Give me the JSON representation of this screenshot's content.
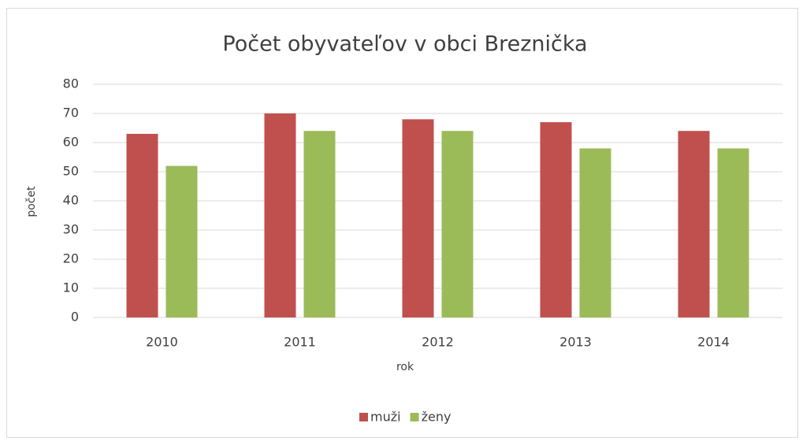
{
  "chart_data": {
    "type": "bar",
    "title": "Počet obyvateľov v obci Breznička",
    "x_label": "rok",
    "y_label": "počet",
    "categories": [
      "2010",
      "2011",
      "2012",
      "2013",
      "2014"
    ],
    "series": [
      {
        "name": "muži",
        "color": "#c0504d",
        "values": [
          63,
          70,
          68,
          67,
          64
        ]
      },
      {
        "name": "ženy",
        "color": "#9bbb59",
        "values": [
          52,
          64,
          64,
          58,
          58
        ]
      }
    ],
    "ylim": [
      0,
      80
    ],
    "yticks": [
      0,
      10,
      20,
      30,
      40,
      50,
      60,
      70,
      80
    ],
    "grid": true,
    "legend": "bottom"
  }
}
